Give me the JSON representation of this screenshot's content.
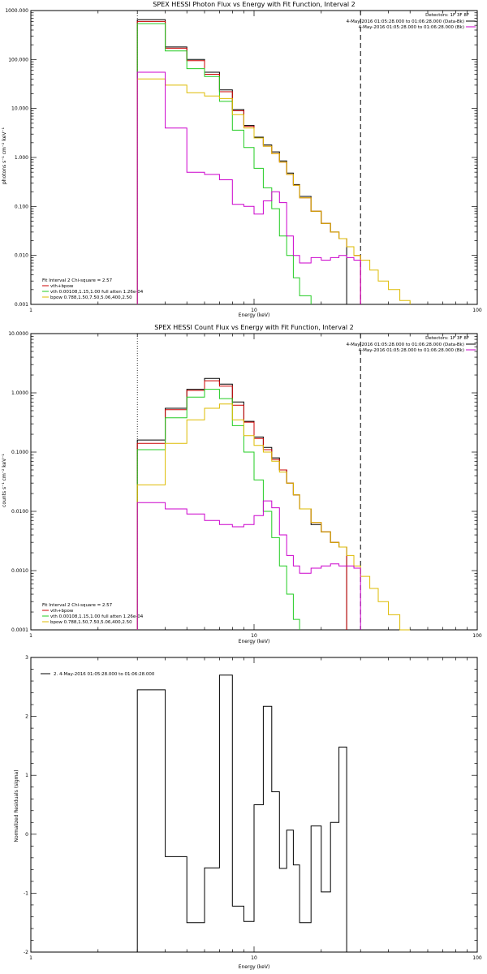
{
  "colors": {
    "data": "#000000",
    "background_model": "#c00000",
    "total_model": "#cc0000",
    "vth_component": "#22cc22",
    "bpow_component": "#ddbb00",
    "background": "#cc00cc"
  },
  "chart_data": [
    {
      "type": "line",
      "title": "SPEX HESSI Photon Flux vs Energy with Fit Function, Interval 2",
      "xlabel": "Energy (keV)",
      "ylabel": "photons s⁻¹ cm⁻² keV⁻¹",
      "xscale": "log",
      "yscale": "log",
      "xlim": [
        1,
        100
      ],
      "ylim": [
        0.001,
        1000
      ],
      "xtick_labels": [
        "1",
        "10",
        "100"
      ],
      "ytick_labels": [
        "0.001",
        "0.010",
        "0.100",
        "1.000",
        "10.000",
        "100.000",
        "1000.000"
      ],
      "legend_header": [
        "Detectors: 1F 3F 8F",
        "4-May-2016 01:05:28.000 to 01:06:28.000 (Data-Bk)",
        "4-May-2016 01:05:28.000 to 01:06:28.000 (Bk)"
      ],
      "fit_text": [
        "Fit Interval 2   Chi-square = 2.57",
        "vth+bpow",
        "vth 0.00108,1.15,1.00  full atten 1.26e-04",
        "bpow 0.788,1.50,7.50,5.06,400,2.50"
      ],
      "dashed_line_x": 30,
      "dotted_line_x": 3,
      "edges": [
        3,
        4,
        5,
        6,
        7,
        8,
        9,
        10,
        11,
        12,
        13,
        14,
        15,
        16,
        18,
        20,
        22,
        24,
        26,
        28,
        30,
        33,
        36,
        40,
        45,
        50
      ],
      "series": [
        {
          "name": "Data-Bk",
          "color_key": "data",
          "values": [
            650,
            180,
            100,
            55,
            24,
            9.5,
            4.5,
            2.6,
            1.8,
            1.3,
            0.85,
            0.48,
            0.28,
            0.16,
            0.08,
            0.045,
            0.03,
            0.022,
            null,
            null,
            null,
            null,
            null,
            null,
            null
          ]
        },
        {
          "name": "vth+bpow",
          "color_key": "total_model",
          "values": [
            600,
            170,
            95,
            50,
            22,
            9.0,
            4.3,
            2.5,
            1.7,
            1.2,
            0.8,
            0.45,
            0.27,
            0.15,
            0.08,
            0.045,
            0.03,
            0.022,
            0.015,
            0.01,
            null,
            null,
            null,
            null,
            null
          ]
        },
        {
          "name": "vth",
          "color_key": "vth_component",
          "values": [
            540,
            150,
            65,
            45,
            14,
            3.6,
            1.6,
            0.6,
            0.24,
            0.09,
            0.025,
            0.01,
            0.0035,
            0.0015,
            null,
            null,
            null,
            null,
            null,
            null,
            null,
            null,
            null,
            null,
            null
          ]
        },
        {
          "name": "bpow",
          "color_key": "bpow_component",
          "values": [
            40,
            30,
            21,
            18,
            16,
            7.5,
            4.0,
            2.5,
            1.7,
            1.2,
            0.8,
            0.45,
            0.27,
            0.15,
            0.08,
            0.045,
            0.03,
            0.022,
            0.015,
            0.01,
            0.008,
            0.005,
            0.003,
            0.002,
            0.0012
          ]
        },
        {
          "name": "Bk",
          "color_key": "background",
          "values": [
            55,
            4.0,
            0.5,
            0.45,
            0.35,
            0.11,
            0.1,
            0.07,
            0.13,
            0.2,
            0.12,
            0.025,
            0.01,
            0.007,
            0.009,
            0.008,
            0.009,
            0.01,
            0.009,
            0.008,
            null,
            null,
            null,
            null,
            null
          ]
        }
      ]
    },
    {
      "type": "line",
      "title": "SPEX HESSI Count Flux vs Energy with Fit Function, Interval 2",
      "xlabel": "Energy (keV)",
      "ylabel": "counts s⁻¹ cm⁻² keV⁻¹",
      "xscale": "log",
      "yscale": "log",
      "xlim": [
        1,
        100
      ],
      "ylim": [
        0.0001,
        10
      ],
      "xtick_labels": [
        "1",
        "10",
        "100"
      ],
      "ytick_labels": [
        "0.0001",
        "0.0010",
        "0.0100",
        "0.1000",
        "1.0000",
        "10.0000"
      ],
      "legend_header": [
        "Detectors: 1F 3F 8F",
        "4-May-2016 01:05:28.000 to 01:06:28.000 (Data-Bk)",
        "4-May-2016 01:05:28.000 to 01:06:28.000 (Bk)"
      ],
      "fit_text": [
        "Fit Interval 2   Chi-square = 2.57",
        "vth+bpow",
        "vth 0.00108,1.15,1.00  full atten 1.26e-04",
        "bpow 0.788,1.50,7.50,5.06,400,2.50"
      ],
      "dashed_line_x": 30,
      "dotted_line_x": 3,
      "edges": [
        3,
        4,
        5,
        6,
        7,
        8,
        9,
        10,
        11,
        12,
        13,
        14,
        15,
        16,
        18,
        20,
        22,
        24,
        26,
        28,
        30,
        33,
        36,
        40,
        45,
        50,
        55
      ],
      "series": [
        {
          "name": "Data-Bk",
          "color_key": "data",
          "values": [
            0.16,
            0.55,
            1.15,
            1.75,
            1.4,
            0.7,
            0.33,
            0.18,
            0.12,
            0.08,
            0.05,
            0.03,
            0.019,
            0.011,
            0.006,
            0.0045,
            0.003,
            0.0025,
            null,
            null,
            null,
            null,
            null,
            null,
            null,
            null
          ]
        },
        {
          "name": "vth+bpow",
          "color_key": "total_model",
          "values": [
            0.14,
            0.52,
            1.1,
            1.6,
            1.3,
            0.62,
            0.32,
            0.17,
            0.11,
            0.075,
            0.05,
            0.03,
            0.019,
            0.011,
            0.0065,
            0.0045,
            0.003,
            0.0025,
            null,
            null,
            null,
            null,
            null,
            null,
            null,
            null
          ]
        },
        {
          "name": "vth",
          "color_key": "vth_component",
          "values": [
            0.11,
            0.38,
            0.85,
            1.15,
            0.8,
            0.28,
            0.1,
            0.034,
            0.01,
            0.0036,
            0.0012,
            0.0004,
            0.00015,
            null,
            null,
            null,
            null,
            null,
            null,
            null,
            null,
            null,
            null,
            null,
            null,
            null
          ]
        },
        {
          "name": "bpow",
          "color_key": "bpow_component",
          "values": [
            0.028,
            0.14,
            0.35,
            0.55,
            0.65,
            0.35,
            0.19,
            0.13,
            0.1,
            0.07,
            0.046,
            0.03,
            0.019,
            0.011,
            0.0065,
            0.0045,
            0.003,
            0.0025,
            0.0018,
            0.0012,
            0.0008,
            0.0005,
            0.0003,
            0.00018,
            0.0001,
            null
          ]
        },
        {
          "name": "Bk",
          "color_key": "background",
          "values": [
            0.014,
            0.011,
            0.009,
            0.007,
            0.006,
            0.0055,
            0.006,
            0.0085,
            0.015,
            0.0115,
            0.004,
            0.0018,
            0.0012,
            0.0009,
            0.0011,
            0.0012,
            0.0013,
            0.0012,
            0.0012,
            0.0011,
            null,
            null,
            null,
            null,
            null,
            null
          ]
        }
      ]
    },
    {
      "type": "line",
      "title": "",
      "xlabel": "Energy (keV)",
      "ylabel": "Normalized Residuals (sigma)",
      "xscale": "log",
      "xlim": [
        1,
        100
      ],
      "ylim": [
        -2,
        3
      ],
      "xtick_labels": [
        "1",
        "10",
        "100"
      ],
      "ytick_labels": [
        "-2",
        "-1",
        "0",
        "1",
        "2",
        "3"
      ],
      "legend": "2. 4-May-2016 01:05:28.000 to 01:06:28.000",
      "edges": [
        3,
        4,
        5,
        6,
        7,
        8,
        9,
        10,
        11,
        12,
        13,
        14,
        15,
        16,
        18,
        20,
        22,
        24,
        26,
        28,
        30
      ],
      "series": [
        {
          "name": "2. 4-May-2016 01:05:28.000 to 01:06:28.000",
          "color_key": "data",
          "values": [
            2.45,
            -0.38,
            -1.5,
            -0.57,
            2.7,
            -1.22,
            -1.48,
            0.5,
            2.17,
            0.72,
            -0.58,
            0.07,
            -0.52,
            -1.5,
            0.14,
            -0.98,
            0.2,
            1.48
          ]
        }
      ]
    }
  ]
}
